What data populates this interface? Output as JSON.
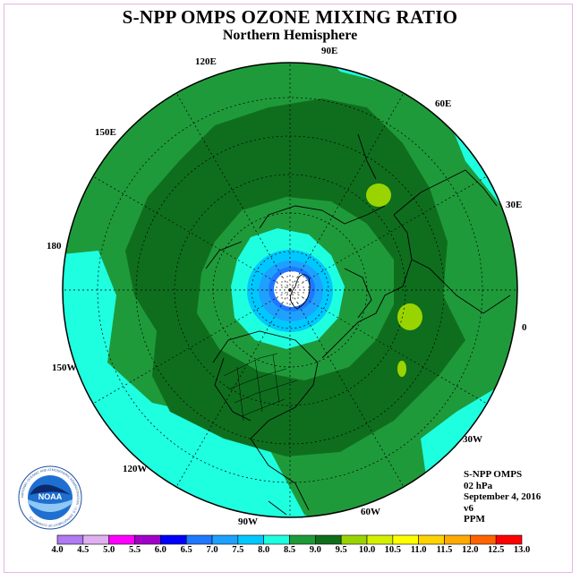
{
  "title": "S-NPP OMPS OZONE MIXING RATIO",
  "subtitle": "Northern Hemisphere",
  "longitude_labels": [
    "90E",
    "60E",
    "30E",
    "0",
    "30W",
    "60W",
    "90W",
    "120W",
    "150W",
    "180",
    "150E",
    "120E"
  ],
  "info": {
    "instrument": "S-NPP OMPS",
    "pressure": "02 hPa",
    "date": "September 4, 2016",
    "version": "v6",
    "units": "PPM"
  },
  "logo": {
    "text": "NOAA",
    "ring_text": "NATIONAL OCEANIC AND ATMOSPHERIC ADMINISTRATION · U.S. DEPARTMENT OF COMMERCE"
  },
  "colorbar": {
    "labels": [
      "4.0",
      "4.5",
      "5.0",
      "5.5",
      "6.0",
      "6.5",
      "7.0",
      "7.5",
      "8.0",
      "8.5",
      "9.0",
      "9.5",
      "10.0",
      "10.5",
      "11.0",
      "11.5",
      "12.0",
      "12.5",
      "13.0"
    ],
    "colors": [
      "#b07af0",
      "#e0b0f0",
      "#ff00ff",
      "#a000c8",
      "#0000ff",
      "#1f78ff",
      "#1ea0ff",
      "#00c8ff",
      "#1effe0",
      "#1f9a3a",
      "#0f6e1e",
      "#9ad400",
      "#d4f000",
      "#ffff00",
      "#ffd200",
      "#ffaa00",
      "#ff6400",
      "#ff0000",
      "#8b5a3c"
    ]
  },
  "map_colors": {
    "outer_ring": "#1effe0",
    "main_band": "#1f9a3a",
    "dark_band": "#0f6e1e",
    "polar_light": "#1effe0",
    "polar_mid": "#00c8ff",
    "polar_blue": "#1ea0ff",
    "polar_deep": "#1f78ff",
    "highlight": "#9ad400",
    "pole_missing": "#ffffff"
  }
}
